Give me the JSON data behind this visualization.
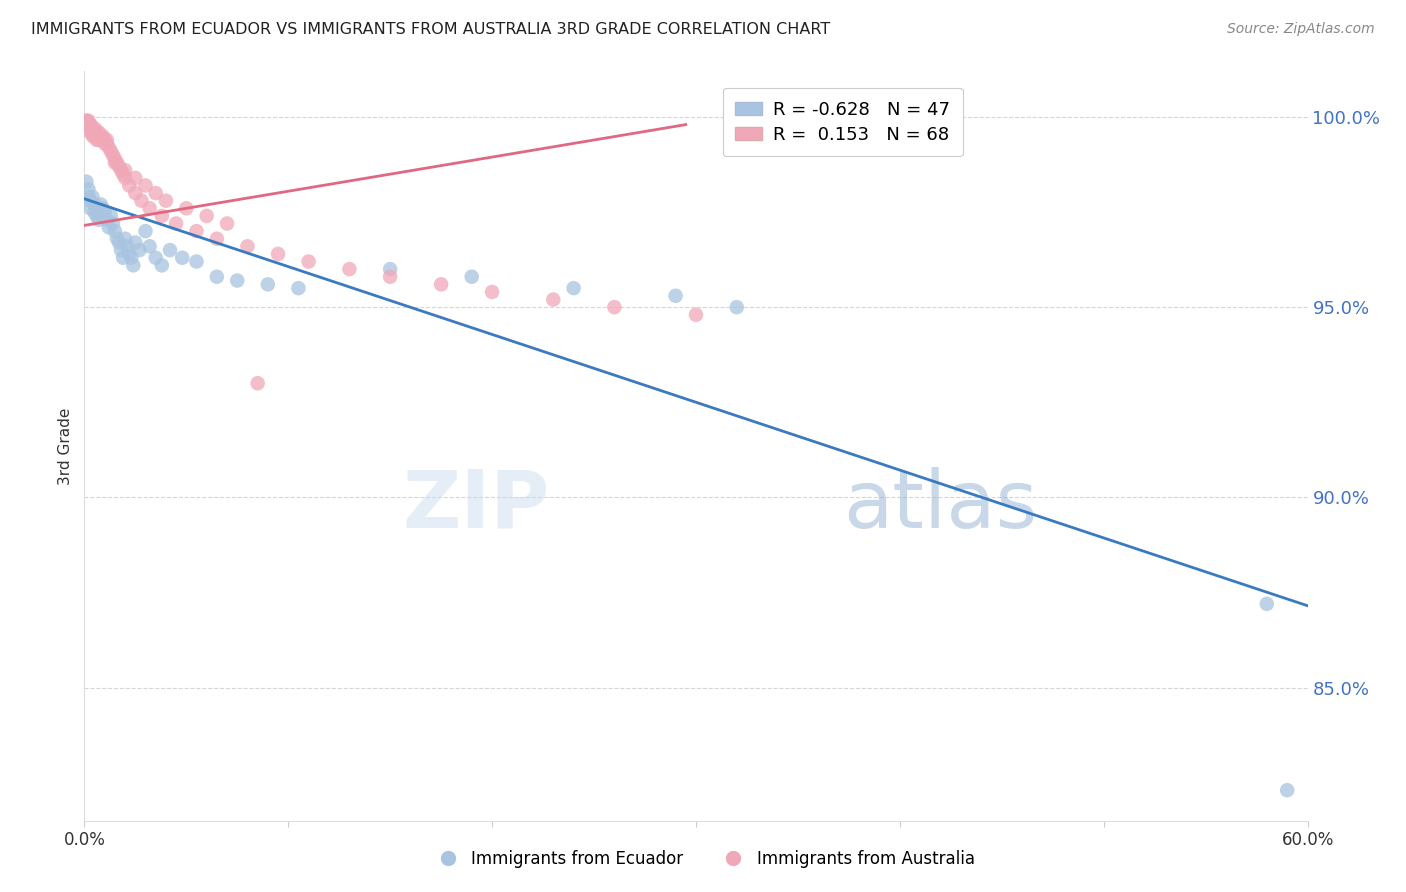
{
  "title": "IMMIGRANTS FROM ECUADOR VS IMMIGRANTS FROM AUSTRALIA 3RD GRADE CORRELATION CHART",
  "source": "Source: ZipAtlas.com",
  "ylabel": "3rd Grade",
  "ytick_labels": [
    "100.0%",
    "95.0%",
    "90.0%",
    "85.0%"
  ],
  "ytick_values": [
    1.0,
    0.95,
    0.9,
    0.85
  ],
  "xlim": [
    0.0,
    0.6
  ],
  "ylim": [
    0.815,
    1.012
  ],
  "legend_blue_r": "-0.628",
  "legend_blue_n": "47",
  "legend_pink_r": "0.153",
  "legend_pink_n": "68",
  "blue_color": "#a8c4e0",
  "blue_line_color": "#3a7abf",
  "pink_color": "#f0a8b8",
  "pink_line_color": "#e06880",
  "blue_scatter_x": [
    0.001,
    0.002,
    0.002,
    0.003,
    0.003,
    0.004,
    0.005,
    0.005,
    0.006,
    0.007,
    0.008,
    0.009,
    0.01,
    0.011,
    0.012,
    0.013,
    0.014,
    0.015,
    0.016,
    0.017,
    0.018,
    0.019,
    0.02,
    0.021,
    0.022,
    0.023,
    0.024,
    0.025,
    0.027,
    0.03,
    0.032,
    0.035,
    0.038,
    0.042,
    0.048,
    0.055,
    0.065,
    0.075,
    0.09,
    0.105,
    0.15,
    0.19,
    0.24,
    0.29,
    0.32,
    0.58,
    0.59
  ],
  "blue_scatter_y": [
    0.983,
    0.981,
    0.979,
    0.978,
    0.976,
    0.979,
    0.977,
    0.975,
    0.974,
    0.973,
    0.977,
    0.976,
    0.975,
    0.973,
    0.971,
    0.974,
    0.972,
    0.97,
    0.968,
    0.967,
    0.965,
    0.963,
    0.968,
    0.966,
    0.964,
    0.963,
    0.961,
    0.967,
    0.965,
    0.97,
    0.966,
    0.963,
    0.961,
    0.965,
    0.963,
    0.962,
    0.958,
    0.957,
    0.956,
    0.955,
    0.96,
    0.958,
    0.955,
    0.953,
    0.95,
    0.872,
    0.823
  ],
  "pink_scatter_x": [
    0.001,
    0.001,
    0.001,
    0.002,
    0.002,
    0.002,
    0.002,
    0.003,
    0.003,
    0.003,
    0.003,
    0.004,
    0.004,
    0.004,
    0.005,
    0.005,
    0.005,
    0.006,
    0.006,
    0.006,
    0.007,
    0.007,
    0.007,
    0.008,
    0.008,
    0.009,
    0.009,
    0.01,
    0.01,
    0.011,
    0.011,
    0.012,
    0.013,
    0.014,
    0.015,
    0.016,
    0.017,
    0.018,
    0.019,
    0.02,
    0.022,
    0.025,
    0.028,
    0.032,
    0.038,
    0.045,
    0.055,
    0.065,
    0.08,
    0.095,
    0.11,
    0.13,
    0.15,
    0.175,
    0.2,
    0.23,
    0.26,
    0.3,
    0.015,
    0.02,
    0.025,
    0.03,
    0.035,
    0.04,
    0.05,
    0.06,
    0.07,
    0.085
  ],
  "pink_scatter_y": [
    0.999,
    0.999,
    0.998,
    0.999,
    0.998,
    0.998,
    0.997,
    0.998,
    0.997,
    0.997,
    0.996,
    0.997,
    0.996,
    0.995,
    0.997,
    0.996,
    0.995,
    0.996,
    0.995,
    0.994,
    0.996,
    0.995,
    0.994,
    0.995,
    0.994,
    0.995,
    0.994,
    0.994,
    0.993,
    0.994,
    0.993,
    0.992,
    0.991,
    0.99,
    0.989,
    0.988,
    0.987,
    0.986,
    0.985,
    0.984,
    0.982,
    0.98,
    0.978,
    0.976,
    0.974,
    0.972,
    0.97,
    0.968,
    0.966,
    0.964,
    0.962,
    0.96,
    0.958,
    0.956,
    0.954,
    0.952,
    0.95,
    0.948,
    0.988,
    0.986,
    0.984,
    0.982,
    0.98,
    0.978,
    0.976,
    0.974,
    0.972,
    0.93
  ],
  "blue_trendline_x": [
    0.0,
    0.6
  ],
  "blue_trendline_y": [
    0.9785,
    0.8715
  ],
  "pink_trendline_x": [
    0.0,
    0.295
  ],
  "pink_trendline_y": [
    0.9715,
    0.998
  ],
  "watermark_zip": "ZIP",
  "watermark_atlas": "atlas",
  "background_color": "#ffffff",
  "grid_color": "#cccccc",
  "title_color": "#222222",
  "axis_label_color": "#333333",
  "right_axis_color": "#4472c4",
  "bottom_legend_blue": "Immigrants from Ecuador",
  "bottom_legend_pink": "Immigrants from Australia"
}
